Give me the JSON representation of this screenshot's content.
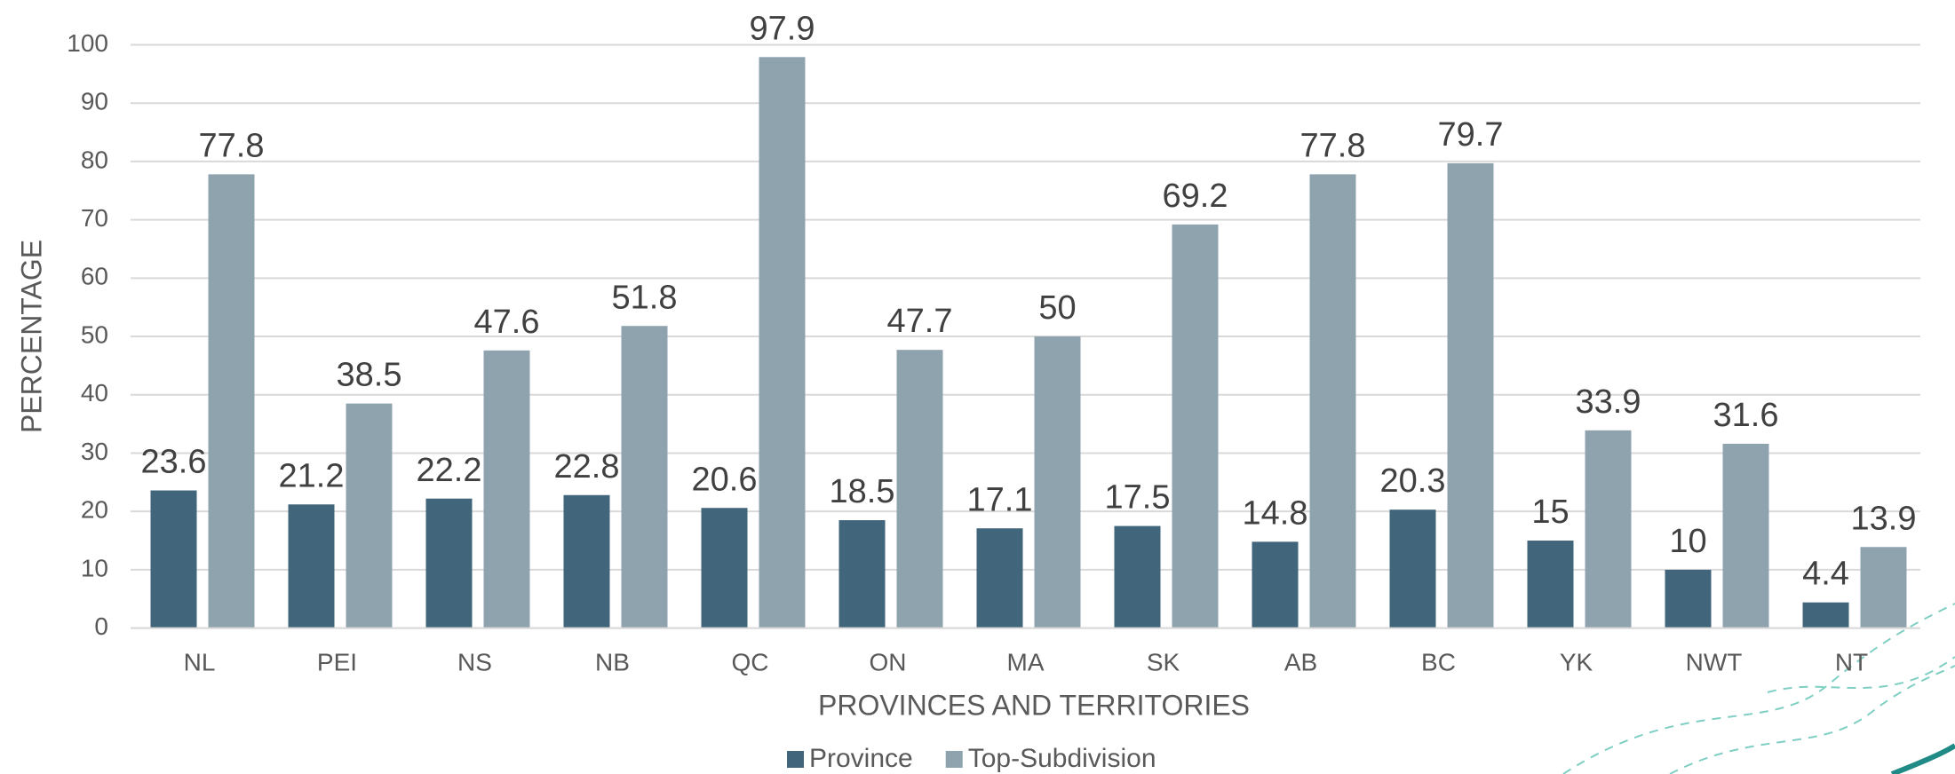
{
  "chart_data": {
    "type": "bar",
    "xlabel": "PROVINCES AND TERRITORIES",
    "ylabel": "PERCENTAGE",
    "categories": [
      "NL",
      "PEI",
      "NS",
      "NB",
      "QC",
      "ON",
      "MA",
      "SK",
      "AB",
      "BC",
      "YK",
      "NWT",
      "NT"
    ],
    "series": [
      {
        "name": "Province",
        "color": "#41657a",
        "values": [
          23.6,
          21.2,
          22.2,
          22.8,
          20.6,
          18.5,
          17.1,
          17.5,
          14.8,
          20.3,
          15,
          10,
          4.4
        ]
      },
      {
        "name": "Top-Subdivision",
        "color": "#8fa3af",
        "values": [
          77.8,
          38.5,
          47.6,
          51.8,
          97.9,
          47.7,
          50,
          69.2,
          77.8,
          79.7,
          33.9,
          31.6,
          13.9
        ]
      }
    ],
    "ylim": [
      0,
      100
    ],
    "yticks": [
      0,
      10,
      20,
      30,
      40,
      50,
      60,
      70,
      80,
      90,
      100
    ],
    "grid": true,
    "legend": "bottom"
  }
}
